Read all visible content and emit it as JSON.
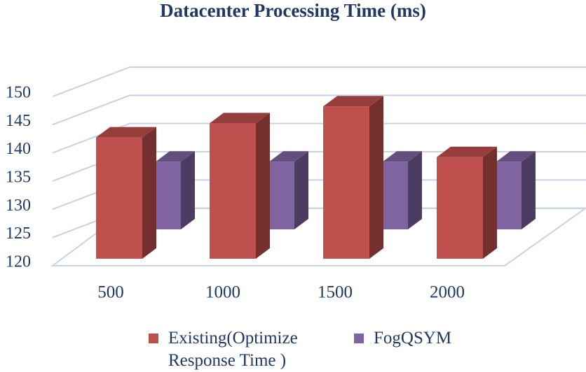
{
  "chart_data": {
    "type": "bar3d",
    "title": "Datacenter Processing Time (ms)",
    "categories": [
      "500",
      "1000",
      "1500",
      "2000"
    ],
    "series": [
      {
        "name": "Existing(Optimize Response Time )",
        "color": "#c0504d",
        "values": [
          141.5,
          144,
          147,
          138
        ]
      },
      {
        "name": "FogQSYM",
        "color": "#8064a2",
        "values": [
          132,
          132,
          132,
          132
        ]
      }
    ],
    "ylim": [
      120,
      150
    ],
    "yticks": [
      120,
      125,
      130,
      135,
      140,
      145,
      150
    ],
    "grid": true
  }
}
